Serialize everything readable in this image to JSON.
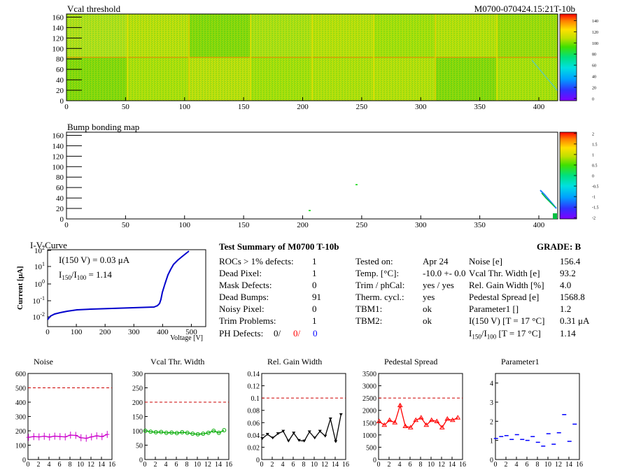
{
  "vcal_map": {
    "title": "Vcal threshold",
    "module_id": "M0700-070424.15:21T-10b",
    "x_ticks": [
      "0",
      "50",
      "100",
      "150",
      "200",
      "250",
      "300",
      "350",
      "400"
    ],
    "y_ticks": [
      "0",
      "20",
      "40",
      "60",
      "80",
      "100",
      "120",
      "140",
      "160"
    ],
    "colorbar_ticks": [
      "0",
      "20",
      "40",
      "60",
      "80",
      "100",
      "120",
      "140"
    ]
  },
  "bump_map": {
    "title": "Bump bonding map",
    "x_ticks": [
      "0",
      "50",
      "100",
      "150",
      "200",
      "250",
      "300",
      "350",
      "400"
    ],
    "y_ticks": [
      "0",
      "20",
      "40",
      "60",
      "80",
      "100",
      "120",
      "140",
      "160"
    ],
    "colorbar_ticks": [
      "-2",
      "-1.5",
      "-1",
      "-0.5",
      "0",
      "0.5",
      "1",
      "1.5",
      "2"
    ]
  },
  "iv": {
    "title": "I-V-Curve",
    "ylabel": "Current [μA]",
    "xlabel": "Voltage [V]",
    "i150_label": "I(150 V) = 0.03 μA",
    "ratio_label": "I",
    "ratio_sub1": "150",
    "ratio_mid": "/I",
    "ratio_sub2": "100",
    "ratio_value": " =  1.14",
    "x_ticks": [
      "0",
      "100",
      "200",
      "300",
      "400",
      "500"
    ],
    "y_exps": [
      "-2",
      "-1",
      "0",
      "1",
      "2"
    ]
  },
  "summary": {
    "title": "Test Summary of M0700     T-10b",
    "grade": "GRADE:  B",
    "left_rows": [
      {
        "label": "ROCs > 1% defects:",
        "value": "1"
      },
      {
        "label": "Dead Pixel:",
        "value": "1"
      },
      {
        "label": "Mask Defects:",
        "value": "0"
      },
      {
        "label": "Dead Bumps:",
        "value": "91"
      },
      {
        "label": "Noisy Pixel:",
        "value": "0"
      },
      {
        "label": "Trim Problems:",
        "value": "1"
      }
    ],
    "ph_label": "PH Defects:",
    "ph_values": [
      "0/",
      "0/",
      "0"
    ],
    "ph_colors": [
      "#000000",
      "#ff0000",
      "#0000ff"
    ],
    "mid_rows": [
      {
        "label": "Tested on:",
        "value": "Apr 24"
      },
      {
        "label": "Temp. [°C]:",
        "value": "-10.0 +- 0.0"
      },
      {
        "label": "Trim / phCal:",
        "value": "yes / yes"
      },
      {
        "label": "Therm. cycl.:",
        "value": "yes"
      },
      {
        "label": "TBM1:",
        "value": "ok"
      },
      {
        "label": "TBM2:",
        "value": "ok"
      }
    ],
    "right_rows": [
      {
        "label": "Noise [e]",
        "value": "156.4"
      },
      {
        "label": "Vcal Thr. Width [e]",
        "value": "93.2"
      },
      {
        "label": "Rel. Gain Width [%]",
        "value": "4.0"
      },
      {
        "label": "Pedestal Spread [e]",
        "value": "1568.8"
      },
      {
        "label": "Parameter1 []",
        "value": "1.2"
      },
      {
        "label": "I(150 V) [T = 17 °C]",
        "value": "0.31 μA"
      }
    ],
    "ratio_row": {
      "main": "I",
      "sub1": "150",
      "mid": "/I",
      "sub2": "100",
      "rest": "  [T = 17 °C]",
      "value": "1.14"
    }
  },
  "chart_data": [
    {
      "type": "line",
      "title": "Noise",
      "color": "#cc00cc",
      "marker": "plus",
      "x": [
        0,
        1,
        2,
        3,
        4,
        5,
        6,
        7,
        8,
        9,
        10,
        11,
        12,
        13,
        14,
        15
      ],
      "values": [
        155,
        160,
        158,
        162,
        157,
        163,
        160,
        158,
        170,
        168,
        152,
        148,
        158,
        165,
        160,
        175
      ],
      "ylim": [
        0,
        600
      ],
      "yticks": [
        "0",
        "100",
        "200",
        "300",
        "400",
        "500",
        "600"
      ],
      "limit": 500
    },
    {
      "type": "line",
      "title": "Vcal Thr. Width",
      "color": "#00aa00",
      "marker": "circle",
      "x": [
        0,
        1,
        2,
        3,
        4,
        5,
        6,
        7,
        8,
        9,
        10,
        11,
        12,
        13,
        14,
        15
      ],
      "values": [
        100,
        97,
        95,
        96,
        93,
        94,
        92,
        95,
        93,
        90,
        88,
        90,
        93,
        100,
        93,
        102
      ],
      "ylim": [
        0,
        300
      ],
      "yticks": [
        "0",
        "50",
        "100",
        "150",
        "200",
        "250",
        "300"
      ],
      "limit": 200
    },
    {
      "type": "line",
      "title": "Rel. Gain Width",
      "color": "#000000",
      "marker": "triangle-down",
      "x": [
        0,
        1,
        2,
        3,
        4,
        5,
        6,
        7,
        8,
        9,
        10,
        11,
        12,
        13,
        14,
        15
      ],
      "values": [
        0.034,
        0.041,
        0.035,
        0.042,
        0.046,
        0.03,
        0.043,
        0.031,
        0.03,
        0.045,
        0.035,
        0.046,
        0.038,
        0.066,
        0.029,
        0.073
      ],
      "ylim": [
        0,
        0.14
      ],
      "yticks": [
        "0",
        "0.02",
        "0.04",
        "0.06",
        "0.08",
        "0.1",
        "0.12",
        "0.14"
      ],
      "limit": 0.1
    },
    {
      "type": "line",
      "title": "Pedestal Spread",
      "color": "#ff0000",
      "marker": "triangle-up",
      "x": [
        0,
        1,
        2,
        3,
        4,
        5,
        6,
        7,
        8,
        9,
        10,
        11,
        12,
        13,
        14,
        15
      ],
      "values": [
        1550,
        1400,
        1600,
        1500,
        2200,
        1350,
        1300,
        1600,
        1700,
        1400,
        1600,
        1550,
        1300,
        1650,
        1600,
        1700
      ],
      "ylim": [
        0,
        3500
      ],
      "yticks": [
        "0",
        "500",
        "1000",
        "1500",
        "2000",
        "2500",
        "3000",
        "3500"
      ],
      "limit": 2500
    },
    {
      "type": "scatter",
      "title": "Parameter1",
      "color": "#0000ff",
      "marker": "hbar",
      "x": [
        0,
        1,
        2,
        3,
        4,
        5,
        6,
        7,
        8,
        9,
        10,
        11,
        12,
        13,
        14,
        15
      ],
      "values": [
        1.1,
        1.2,
        1.25,
        1.05,
        1.3,
        1.05,
        1.0,
        1.2,
        0.9,
        0.7,
        1.35,
        0.8,
        1.4,
        2.35,
        0.95,
        1.85
      ],
      "ylim": [
        0,
        4.5
      ],
      "yticks": [
        "0",
        "1",
        "2",
        "3",
        "4"
      ]
    }
  ],
  "x_tick_labels_small": [
    "0",
    "2",
    "4",
    "6",
    "8",
    "10",
    "12",
    "14",
    "16"
  ]
}
